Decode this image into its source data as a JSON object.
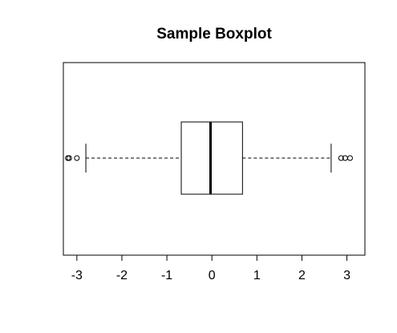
{
  "chart_data": {
    "type": "boxplot",
    "title": "Sample Boxplot",
    "xlabel": "",
    "ylabel": "",
    "orientation": "horizontal",
    "xlim": [
      -3.3,
      3.4
    ],
    "x_ticks": [
      -3,
      -2,
      -1,
      0,
      1,
      2,
      3
    ],
    "x_tick_labels": [
      "-3",
      "-2",
      "-1",
      "0",
      "1",
      "2",
      "3"
    ],
    "grid": false,
    "box": {
      "q1": -0.68,
      "median": -0.03,
      "q3": 0.68,
      "whisker_low": -2.8,
      "whisker_high": 2.65
    },
    "outliers": [
      -3.2,
      -3.17,
      -3.0,
      2.87,
      2.96,
      3.07
    ],
    "colors": {
      "box_fill": "#ffffff",
      "stroke": "#000000"
    }
  }
}
